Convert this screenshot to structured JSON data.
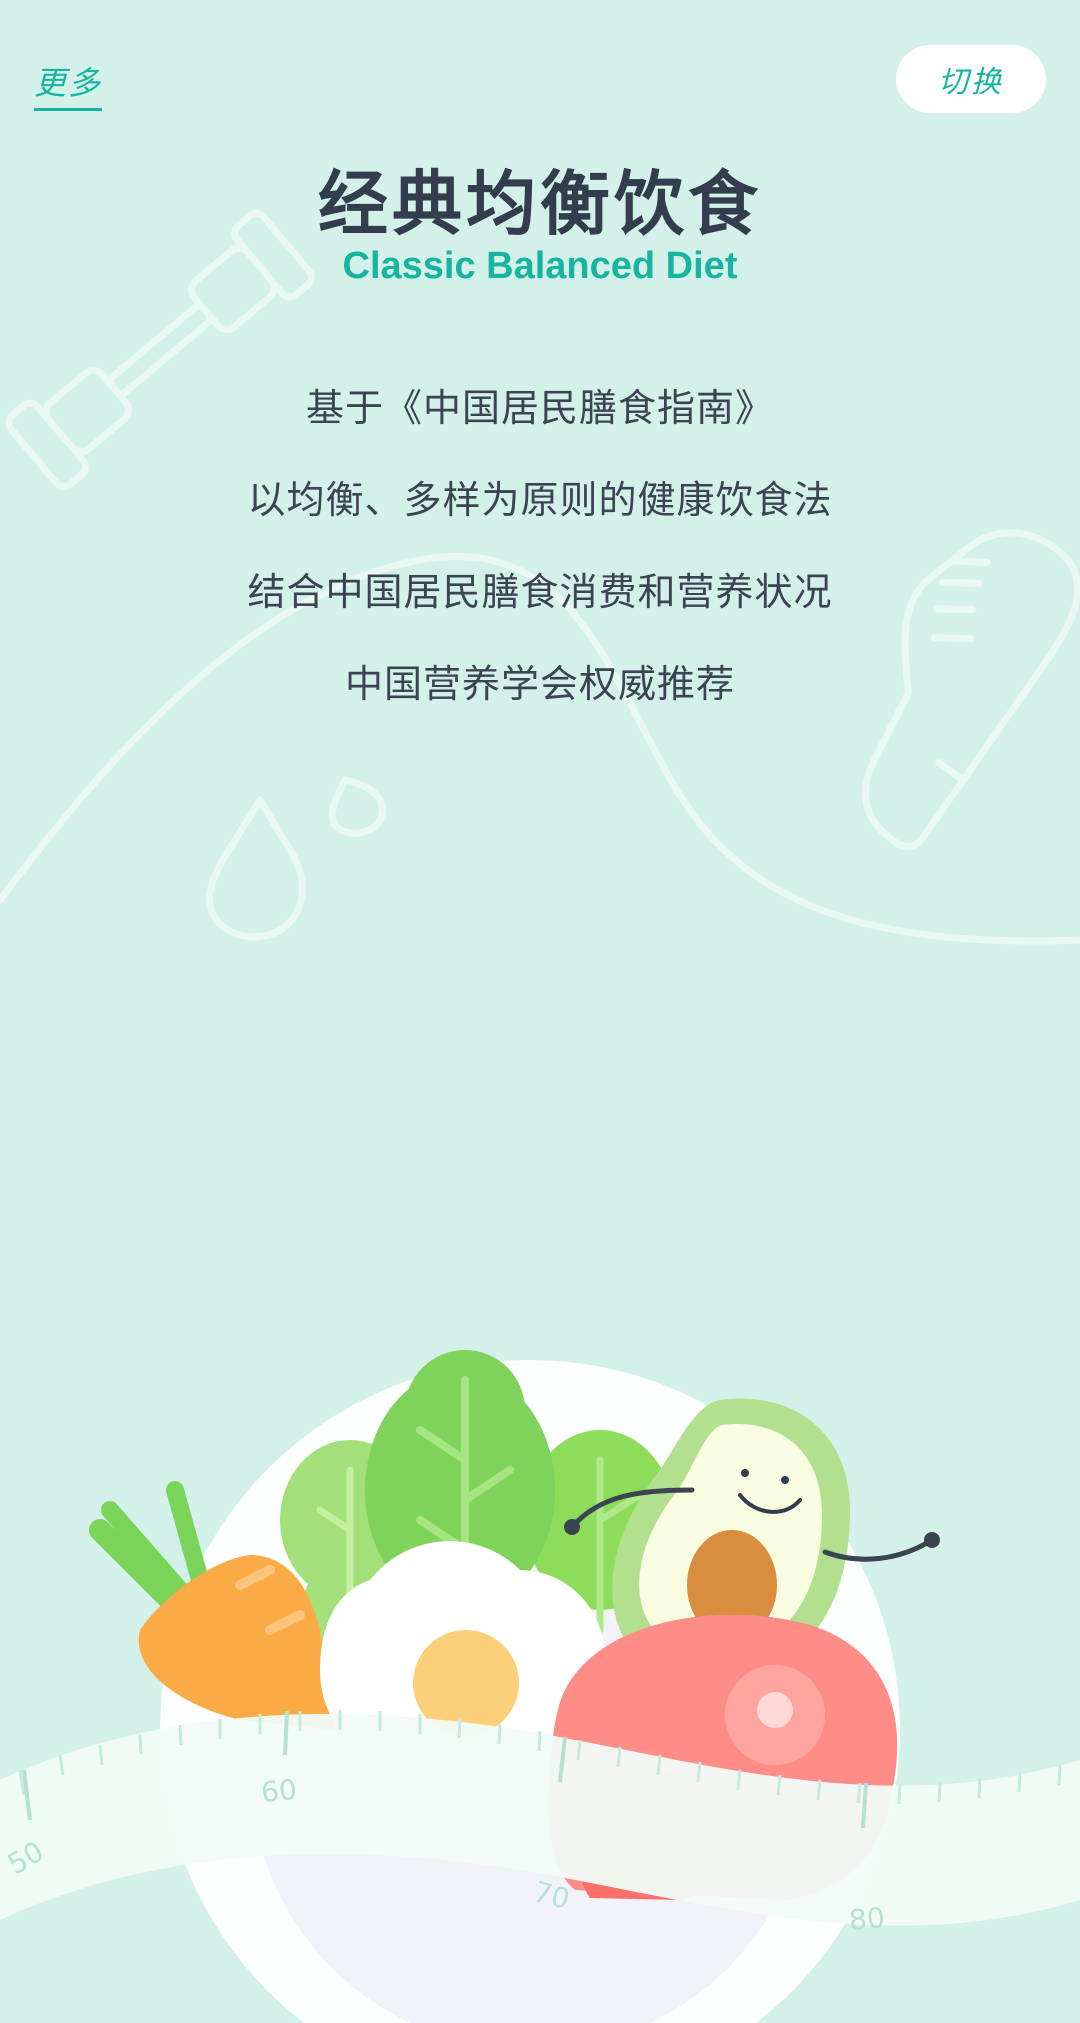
{
  "header": {
    "more_label": "更多",
    "switch_label": "切换"
  },
  "hero": {
    "title": "经典均衡饮食",
    "subtitle": "Classic Balanced Diet",
    "description_lines": [
      "基于《中国居民膳食指南》",
      "以均衡、多样为原则的健康饮食法",
      "结合中国居民膳食消费和营养状况",
      "中国营养学会权威推荐"
    ]
  },
  "tape_measure": {
    "labels": [
      "50",
      "60",
      "70",
      "80"
    ]
  },
  "colors": {
    "background": "#d3f1e8",
    "accent": "#17b5a1",
    "title": "#333d4d"
  }
}
